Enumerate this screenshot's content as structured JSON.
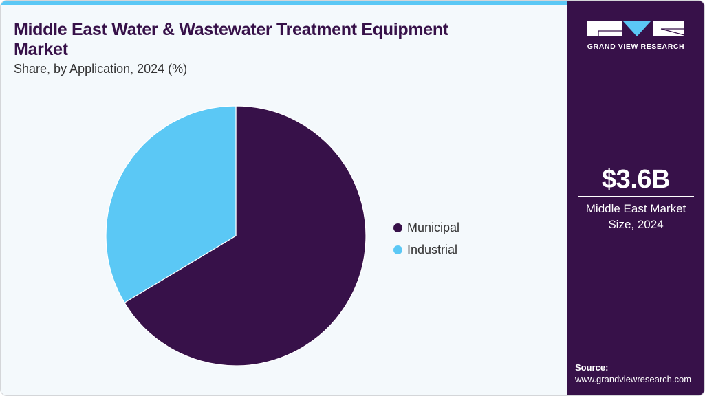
{
  "header": {
    "title": "Middle East Water & Wastewater Treatment Equipment Market",
    "subtitle": "Share, by Application, 2024 (%)"
  },
  "legend": {
    "items": [
      {
        "label": "Municipal",
        "color": "#371149"
      },
      {
        "label": "Industrial",
        "color": "#5bc8f5"
      }
    ]
  },
  "sidebar": {
    "logo_text": "GRAND VIEW RESEARCH",
    "stat_value": "$3.6B",
    "stat_label_line1": "Middle East Market",
    "stat_label_line2": "Size, 2024",
    "source_label": "Source:",
    "source_url": "www.grandviewresearch.com"
  },
  "colors": {
    "accent_dark": "#371149",
    "accent_light": "#5bc8f5",
    "background": "#f4f9fc"
  },
  "chart_data": {
    "type": "pie",
    "title": "Middle East Water & Wastewater Treatment Equipment Market",
    "subtitle": "Share, by Application, 2024 (%)",
    "categories": [
      "Municipal",
      "Industrial"
    ],
    "values": [
      66.4,
      33.6
    ],
    "colors": [
      "#371149",
      "#5bc8f5"
    ],
    "start_angle_deg": 0,
    "direction": "clockwise",
    "legend_position": "right",
    "data_labels": false
  }
}
